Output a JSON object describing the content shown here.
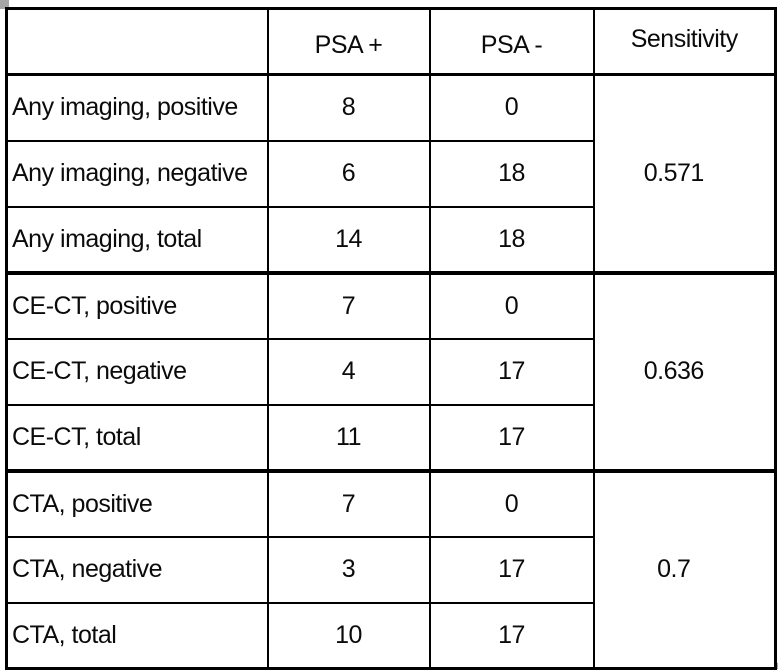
{
  "colors": {
    "border": "#000000",
    "background": "#ffffff",
    "text": "#0b0b0b",
    "selection_handle": "#a6a6a6"
  },
  "header": {
    "psa_plus": "PSA +",
    "psa_minus": "PSA -",
    "sensitivity": "Sensitivity"
  },
  "groups": [
    {
      "sensitivity": "0.571",
      "rows": [
        {
          "label": "Any imaging, positive",
          "psa_plus": "8",
          "psa_minus": "0"
        },
        {
          "label": "Any imaging, negative",
          "psa_plus": "6",
          "psa_minus": "18"
        },
        {
          "label": "Any imaging, total",
          "psa_plus": "14",
          "psa_minus": "18"
        }
      ]
    },
    {
      "sensitivity": "0.636",
      "rows": [
        {
          "label": "CE-CT, positive",
          "psa_plus": "7",
          "psa_minus": "0"
        },
        {
          "label": "CE-CT, negative",
          "psa_plus": "4",
          "psa_minus": "17"
        },
        {
          "label": "CE-CT, total",
          "psa_plus": "11",
          "psa_minus": "17"
        }
      ]
    },
    {
      "sensitivity": "0.7",
      "rows": [
        {
          "label": "CTA, positive",
          "psa_plus": "7",
          "psa_minus": "0"
        },
        {
          "label": "CTA, negative",
          "psa_plus": "3",
          "psa_minus": "17"
        },
        {
          "label": "CTA, total",
          "psa_plus": "10",
          "psa_minus": "17"
        }
      ]
    }
  ]
}
